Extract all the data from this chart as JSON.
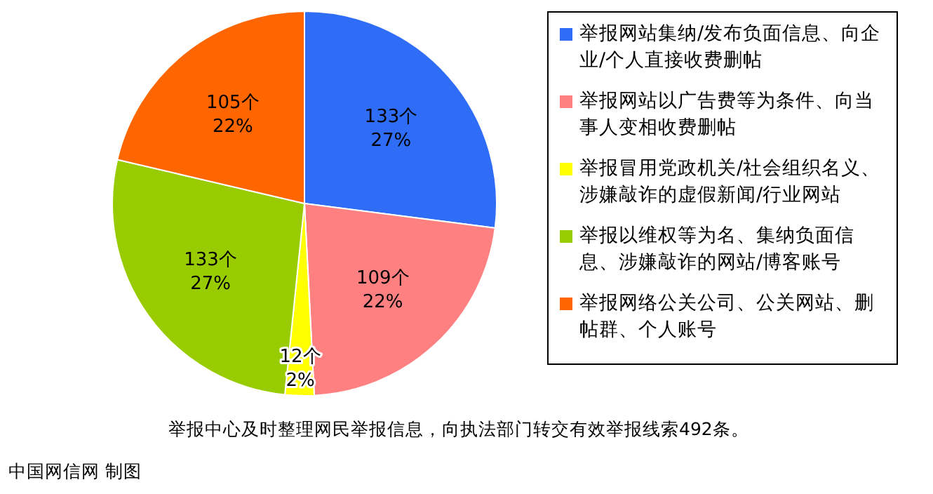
{
  "chart_data": {
    "type": "pie",
    "categories": [
      "举报网站集纳/发布负面信息、向企业/个人直接收费删帖",
      "举报网站以广告费等为条件、向当事人变相收费删帖",
      "举报冒用党政机关/社会组织名义、涉嫌敲诈的虚假新闻/行业网站",
      "举报以维权等为名、集纳负面信息、涉嫌敲诈的网站/博客账号",
      "举报网络公关公司、公关网站、删帖群、个人账号"
    ],
    "values": [
      133,
      109,
      12,
      133,
      105
    ],
    "colors": [
      "#2f6df6",
      "#ff8080",
      "#ffff00",
      "#99cc00",
      "#ff6600"
    ],
    "value_labels": [
      "133个\n27%",
      "109个\n22%",
      "12个\n2%",
      "133个\n27%",
      "105个\n22%"
    ],
    "legend": "right",
    "annotations": [
      "举报中心及时整理网民举报信息，向执法部门转交有效举报线索492条。",
      "中国网信网 制图"
    ]
  }
}
